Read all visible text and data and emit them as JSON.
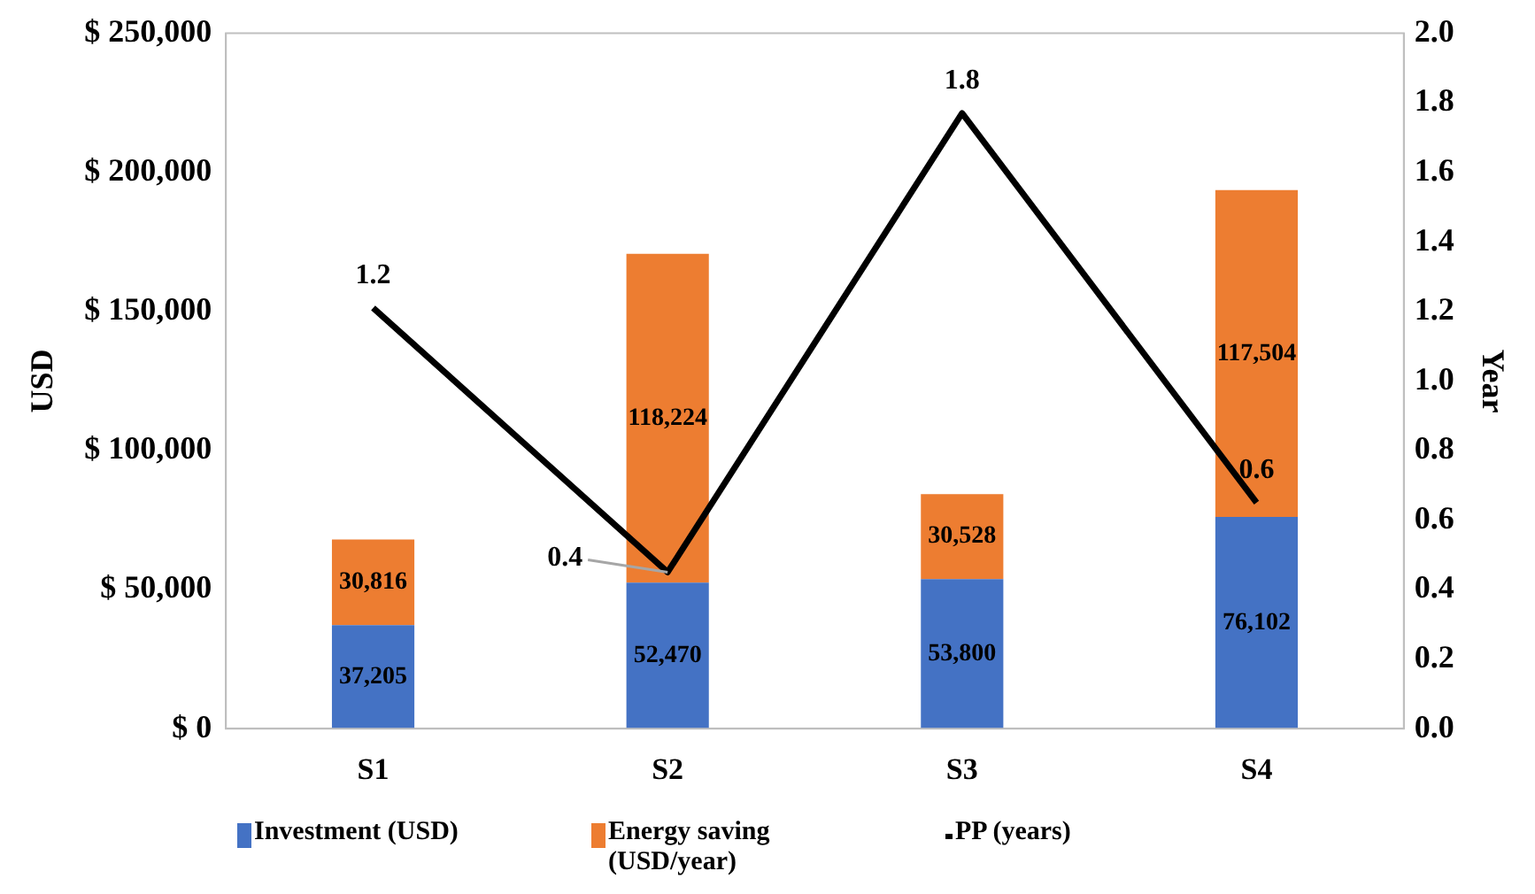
{
  "chart_data": {
    "type": "bar",
    "stacked": true,
    "ylabel": "USD",
    "y2label": "Year",
    "categories": [
      "S1",
      "S2",
      "S3",
      "S4"
    ],
    "series": [
      {
        "name": "Investment (USD)",
        "color": "#4472c4",
        "values": [
          37205,
          52470,
          53800,
          76102
        ],
        "value_labels": [
          "37,205",
          "52,470",
          "53,800",
          "76,102"
        ]
      },
      {
        "name": "Energy saving (USD/year)",
        "color": "#ed7d31",
        "values": [
          30816,
          118224,
          30528,
          117504
        ],
        "value_labels": [
          "30,816",
          "118,224",
          "30,528",
          "117,504"
        ]
      },
      {
        "name": "PP (years)",
        "type": "line",
        "axis": "y2",
        "color": "#000000",
        "values": [
          1.21,
          0.45,
          1.77,
          0.65
        ],
        "value_labels": [
          "1.2",
          "0.4",
          "1.8",
          "0.6"
        ]
      }
    ],
    "ylim": [
      0,
      250000
    ],
    "yticks": [
      {
        "value": 0,
        "label": "$ 0"
      },
      {
        "value": 50000,
        "label": "$ 50,000"
      },
      {
        "value": 100000,
        "label": "$ 100,000"
      },
      {
        "value": 150000,
        "label": "$ 150,000"
      },
      {
        "value": 200000,
        "label": "$ 200,000"
      },
      {
        "value": 250000,
        "label": "$ 250,000"
      }
    ],
    "y2lim": [
      0,
      2
    ],
    "y2ticks": [
      {
        "value": 0,
        "label": "0.0"
      },
      {
        "value": 0.2,
        "label": "0.2"
      },
      {
        "value": 0.4,
        "label": "0.4"
      },
      {
        "value": 0.6,
        "label": "0.6"
      },
      {
        "value": 0.8,
        "label": "0.8"
      },
      {
        "value": 1,
        "label": "1.0"
      },
      {
        "value": 1.2,
        "label": "1.2"
      },
      {
        "value": 1.4,
        "label": "1.4"
      },
      {
        "value": 1.6,
        "label": "1.6"
      },
      {
        "value": 1.8,
        "label": "1.8"
      },
      {
        "value": 2,
        "label": "2.0"
      }
    ],
    "grid": false,
    "legend": "bottom",
    "marker": "none",
    "line_style": "solid"
  }
}
